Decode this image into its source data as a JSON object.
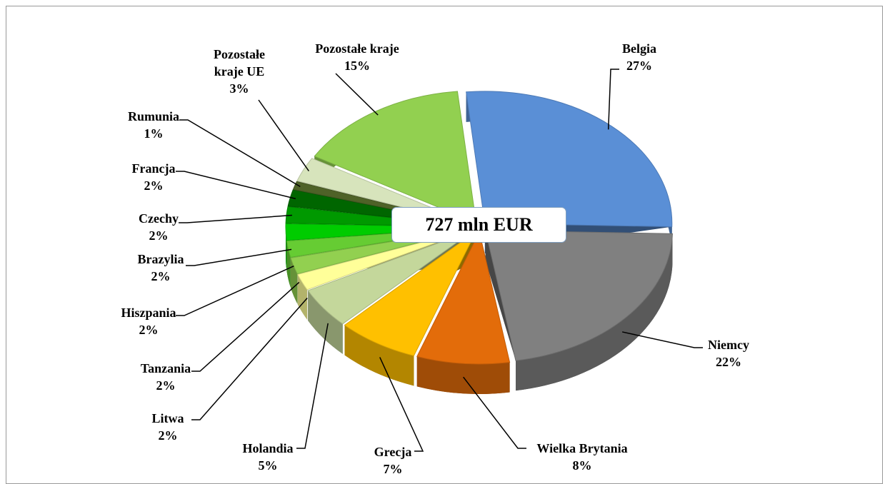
{
  "chart_data": {
    "type": "pie",
    "annotation": "727 mln EUR",
    "categories": [
      "Belgia",
      "Niemcy",
      "Wielka Brytania",
      "Grecja",
      "Holandia",
      "Litwa",
      "Tanzania",
      "Hiszpania",
      "Brazylia",
      "Czechy",
      "Francja",
      "Rumunia",
      "Pozostałe kraje UE",
      "Pozostałe kraje"
    ],
    "values": [
      27,
      22,
      8,
      7,
      5,
      2,
      2,
      2,
      2,
      2,
      2,
      1,
      3,
      15
    ],
    "value_labels": [
      "27%",
      "22%",
      "8%",
      "7%",
      "5%",
      "2%",
      "2%",
      "2%",
      "2%",
      "2%",
      "2%",
      "1%",
      "3%",
      "15%"
    ],
    "colors": [
      "#5a8fd6",
      "#808080",
      "#e36c0a",
      "#ffc000",
      "#c4d79b",
      "#ffff99",
      "#92d050",
      "#66cc33",
      "#00cc00",
      "#009900",
      "#006600",
      "#4f6228",
      "#d7e4bc",
      "#92d050"
    ]
  }
}
